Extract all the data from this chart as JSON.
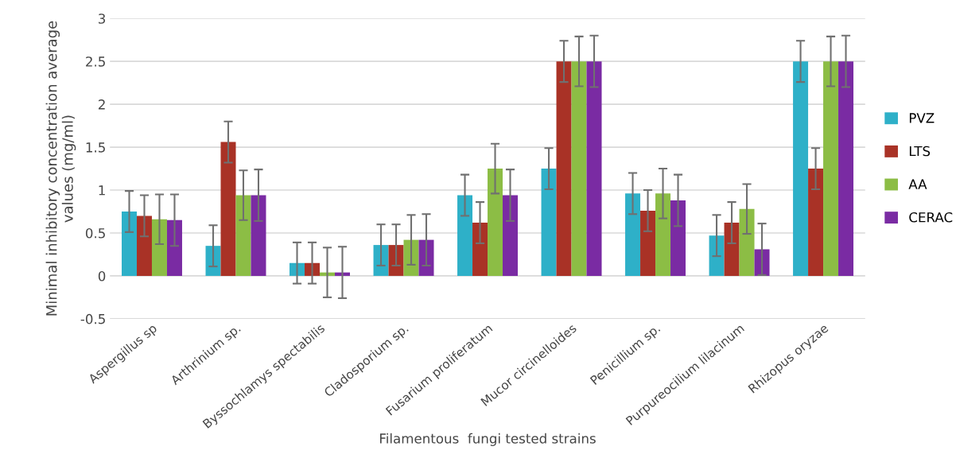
{
  "chart_data": {
    "type": "bar",
    "xlabel": "Filamentous  fungi tested strains",
    "ylabel": "Minimal inhibitory concentration average values (mg/ml)",
    "categories": [
      "Aspergillus sp",
      "Arthrinium sp.",
      "Byssochlamys spectabilis",
      "Cladosporium sp.",
      "Fusarium proliferatum",
      "Mucor circinelloides",
      "Penicillium sp.",
      "Purpureocilium lilacinum",
      "Rhizopus oryzae"
    ],
    "series": [
      {
        "name": "PVZ",
        "color": "#2eb0c8",
        "values": [
          0.75,
          0.35,
          0.15,
          0.36,
          0.94,
          1.25,
          0.96,
          0.47,
          2.5
        ],
        "errors": [
          0.24,
          0.24,
          0.24,
          0.24,
          0.24,
          0.24,
          0.24,
          0.24,
          0.24
        ]
      },
      {
        "name": "LTS",
        "color": "#a93226",
        "values": [
          0.7,
          1.56,
          0.15,
          0.36,
          0.62,
          2.5,
          0.76,
          0.62,
          1.25
        ],
        "errors": [
          0.24,
          0.24,
          0.24,
          0.24,
          0.24,
          0.24,
          0.24,
          0.24,
          0.24
        ]
      },
      {
        "name": "AA",
        "color": "#8cbd45",
        "values": [
          0.66,
          0.94,
          0.04,
          0.42,
          1.25,
          2.5,
          0.96,
          0.78,
          2.5
        ],
        "errors": [
          0.29,
          0.29,
          0.29,
          0.29,
          0.29,
          0.29,
          0.29,
          0.29,
          0.29
        ]
      },
      {
        "name": "CERAC",
        "color": "#7a2ba3",
        "values": [
          0.65,
          0.94,
          0.04,
          0.42,
          0.94,
          2.5,
          0.88,
          0.31,
          2.5
        ],
        "errors": [
          0.3,
          0.3,
          0.3,
          0.3,
          0.3,
          0.3,
          0.3,
          0.3,
          0.3
        ]
      }
    ],
    "ylim": [
      -0.5,
      3
    ],
    "yticks": [
      -0.5,
      0,
      0.5,
      1,
      1.5,
      2,
      2.5,
      3
    ],
    "grid": "y",
    "legend": "right"
  }
}
